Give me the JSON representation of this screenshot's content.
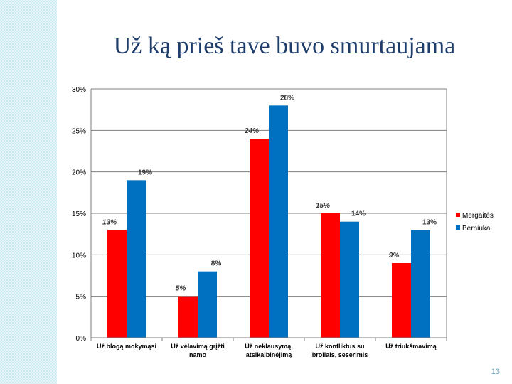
{
  "slide": {
    "title": "Už ką prieš tave buvo smurtaujama",
    "page_number": "13"
  },
  "chart_data": {
    "type": "bar",
    "title": "",
    "xlabel": "",
    "ylabel": "",
    "ylim": [
      0,
      30
    ],
    "yticks": [
      "0%",
      "5%",
      "10%",
      "15%",
      "20%",
      "25%",
      "30%"
    ],
    "grid": true,
    "legend_position": "right",
    "categories": [
      [
        "Už blogą mokymąsi"
      ],
      [
        "Už vėlavimą grįžti",
        "namo"
      ],
      [
        "Už neklausymą,",
        "atsikalbinėjimą"
      ],
      [
        "Už konfliktus su",
        "broliais, seserimis"
      ],
      [
        "Už triukšmavimą"
      ]
    ],
    "series": [
      {
        "name": "Mergaitės",
        "color": "#ff0000",
        "values": [
          13,
          5,
          24,
          15,
          9
        ],
        "labels": [
          "13%",
          "5%",
          "24%",
          "15%",
          "9%"
        ]
      },
      {
        "name": "Berniukai",
        "color": "#0070c0",
        "values": [
          19,
          8,
          28,
          14,
          13
        ],
        "labels": [
          "19%",
          "8%",
          "28%",
          "14%",
          "13%"
        ]
      }
    ]
  }
}
